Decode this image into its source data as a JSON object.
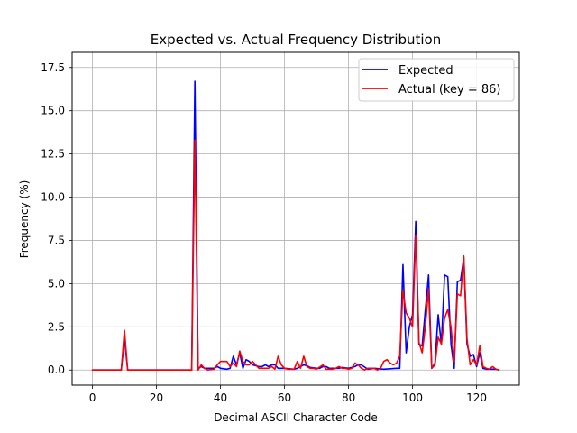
{
  "chart_data": {
    "type": "line",
    "title": "Expected vs. Actual Frequency Distribution",
    "xlabel": "Decimal ASCII Character Code",
    "ylabel": "Frequency (%)",
    "xlim": [
      -6.35,
      133.35
    ],
    "ylim": [
      -0.875,
      18.375
    ],
    "xticks": [
      0,
      20,
      40,
      60,
      80,
      100,
      120
    ],
    "yticks": [
      0.0,
      2.5,
      5.0,
      7.5,
      10.0,
      12.5,
      15.0,
      17.5
    ],
    "xtick_labels": [
      "0",
      "20",
      "40",
      "60",
      "80",
      "100",
      "120"
    ],
    "ytick_labels": [
      "0.0",
      "2.5",
      "5.0",
      "7.5",
      "10.0",
      "12.5",
      "15.0",
      "17.5"
    ],
    "grid": true,
    "legend_position": "top-right",
    "series": [
      {
        "name": "Expected",
        "color": "#0000ff",
        "points": [
          [
            0,
            0
          ],
          [
            9,
            0
          ],
          [
            10,
            1.8
          ],
          [
            11,
            0
          ],
          [
            31,
            0
          ],
          [
            32,
            16.7
          ],
          [
            33,
            0.1
          ],
          [
            34,
            0.2
          ],
          [
            35,
            0.1
          ],
          [
            38,
            0.1
          ],
          [
            39,
            0.2
          ],
          [
            40,
            0.1
          ],
          [
            42,
            0.05
          ],
          [
            43,
            0.1
          ],
          [
            44,
            0.8
          ],
          [
            45,
            0.3
          ],
          [
            46,
            1.0
          ],
          [
            47,
            0.1
          ],
          [
            48,
            0.6
          ],
          [
            49,
            0.5
          ],
          [
            50,
            0.3
          ],
          [
            52,
            0.2
          ],
          [
            53,
            0.2
          ],
          [
            54,
            0.3
          ],
          [
            55,
            0.2
          ],
          [
            56,
            0.3
          ],
          [
            57,
            0.3
          ],
          [
            58,
            0.1
          ],
          [
            60,
            0.1
          ],
          [
            63,
            0.05
          ],
          [
            64,
            0.1
          ],
          [
            65,
            0.2
          ],
          [
            66,
            0.3
          ],
          [
            67,
            0.25
          ],
          [
            68,
            0.15
          ],
          [
            70,
            0.1
          ],
          [
            71,
            0.1
          ],
          [
            72,
            0.2
          ],
          [
            73,
            0.2
          ],
          [
            74,
            0.1
          ],
          [
            76,
            0.1
          ],
          [
            77,
            0.1
          ],
          [
            78,
            0.15
          ],
          [
            80,
            0.1
          ],
          [
            82,
            0.2
          ],
          [
            83,
            0.3
          ],
          [
            84,
            0.3
          ],
          [
            86,
            0.05
          ],
          [
            88,
            0.1
          ],
          [
            91,
            0.05
          ],
          [
            95,
            0.1
          ],
          [
            96,
            0.1
          ],
          [
            97,
            6.1
          ],
          [
            98,
            1.0
          ],
          [
            99,
            2.5
          ],
          [
            100,
            3.2
          ],
          [
            101,
            8.6
          ],
          [
            102,
            1.5
          ],
          [
            103,
            1.4
          ],
          [
            104,
            3.5
          ],
          [
            105,
            5.5
          ],
          [
            106,
            0.1
          ],
          [
            107,
            0.4
          ],
          [
            108,
            3.2
          ],
          [
            109,
            1.5
          ],
          [
            110,
            5.5
          ],
          [
            111,
            5.4
          ],
          [
            112,
            1.5
          ],
          [
            113,
            0.1
          ],
          [
            114,
            5.1
          ],
          [
            115,
            5.2
          ],
          [
            116,
            6.5
          ],
          [
            117,
            1.5
          ],
          [
            118,
            0.8
          ],
          [
            119,
            0.9
          ],
          [
            120,
            0.2
          ],
          [
            121,
            1.0
          ],
          [
            122,
            0.1
          ],
          [
            123,
            0.05
          ],
          [
            124,
            0.05
          ],
          [
            125,
            0.05
          ],
          [
            126,
            0.05
          ],
          [
            127,
            0
          ]
        ]
      },
      {
        "name": "Actual (key = 86)",
        "color": "#ff0000",
        "points": [
          [
            0,
            0
          ],
          [
            9,
            0
          ],
          [
            10,
            2.3
          ],
          [
            11,
            0
          ],
          [
            31,
            0
          ],
          [
            32,
            13.3
          ],
          [
            33,
            0
          ],
          [
            34,
            0.3
          ],
          [
            35,
            0.1
          ],
          [
            36,
            0
          ],
          [
            38,
            0.05
          ],
          [
            39,
            0.3
          ],
          [
            40,
            0.5
          ],
          [
            42,
            0.5
          ],
          [
            43,
            0.2
          ],
          [
            44,
            0.4
          ],
          [
            45,
            0.2
          ],
          [
            46,
            1.1
          ],
          [
            47,
            0.5
          ],
          [
            48,
            0.3
          ],
          [
            49,
            0.3
          ],
          [
            50,
            0.5
          ],
          [
            51,
            0.3
          ],
          [
            52,
            0.1
          ],
          [
            53,
            0.1
          ],
          [
            55,
            0.1
          ],
          [
            56,
            0.2
          ],
          [
            57,
            0.05
          ],
          [
            58,
            0.8
          ],
          [
            59,
            0.3
          ],
          [
            60,
            0.1
          ],
          [
            61,
            0.05
          ],
          [
            63,
            0.05
          ],
          [
            64,
            0.5
          ],
          [
            65,
            0.1
          ],
          [
            66,
            0.8
          ],
          [
            67,
            0.2
          ],
          [
            68,
            0.1
          ],
          [
            69,
            0.1
          ],
          [
            70,
            0.05
          ],
          [
            72,
            0.3
          ],
          [
            73,
            0.05
          ],
          [
            75,
            0.05
          ],
          [
            76,
            0.1
          ],
          [
            77,
            0.2
          ],
          [
            78,
            0.1
          ],
          [
            79,
            0.1
          ],
          [
            80,
            0.05
          ],
          [
            81,
            0.1
          ],
          [
            82,
            0.4
          ],
          [
            83,
            0.3
          ],
          [
            84,
            0.1
          ],
          [
            85,
            0
          ],
          [
            86,
            0.1
          ],
          [
            88,
            0.1
          ],
          [
            89,
            0
          ],
          [
            90,
            0.1
          ],
          [
            91,
            0.5
          ],
          [
            92,
            0.6
          ],
          [
            93,
            0.4
          ],
          [
            94,
            0.3
          ],
          [
            95,
            0.4
          ],
          [
            96,
            0.8
          ],
          [
            97,
            4.6
          ],
          [
            98,
            3.3
          ],
          [
            99,
            3.0
          ],
          [
            100,
            2.5
          ],
          [
            101,
            7.8
          ],
          [
            102,
            1.6
          ],
          [
            103,
            1.0
          ],
          [
            104,
            2.5
          ],
          [
            105,
            4.7
          ],
          [
            106,
            0.1
          ],
          [
            107,
            0.3
          ],
          [
            108,
            1.9
          ],
          [
            109,
            1.5
          ],
          [
            110,
            3.0
          ],
          [
            111,
            3.5
          ],
          [
            112,
            2.5
          ],
          [
            113,
            0.5
          ],
          [
            114,
            4.4
          ],
          [
            115,
            4.3
          ],
          [
            116,
            6.6
          ],
          [
            117,
            1.8
          ],
          [
            118,
            0.3
          ],
          [
            119,
            0.6
          ],
          [
            120,
            0.3
          ],
          [
            121,
            1.4
          ],
          [
            122,
            0.2
          ],
          [
            123,
            0.1
          ],
          [
            124,
            0.05
          ],
          [
            125,
            0.2
          ],
          [
            126,
            0.05
          ],
          [
            127,
            0
          ]
        ]
      }
    ]
  }
}
